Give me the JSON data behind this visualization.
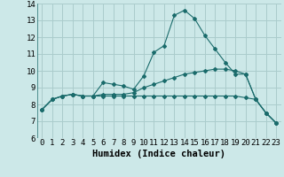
{
  "title": "",
  "xlabel": "Humidex (Indice chaleur)",
  "ylabel": "",
  "xlim": [
    -0.5,
    23.5
  ],
  "ylim": [
    6,
    14
  ],
  "yticks": [
    6,
    7,
    8,
    9,
    10,
    11,
    12,
    13,
    14
  ],
  "xticks": [
    0,
    1,
    2,
    3,
    4,
    5,
    6,
    7,
    8,
    9,
    10,
    11,
    12,
    13,
    14,
    15,
    16,
    17,
    18,
    19,
    20,
    21,
    22,
    23
  ],
  "background_color": "#cce8e8",
  "grid_color": "#aacccc",
  "line_color": "#1a6b6b",
  "line1_x": [
    0,
    1,
    2,
    3,
    4,
    5,
    6,
    7,
    8,
    9,
    10,
    11,
    12,
    13,
    14,
    15,
    16,
    17,
    18,
    19,
    20,
    21,
    22,
    23
  ],
  "line1_y": [
    7.7,
    8.3,
    8.5,
    8.6,
    8.5,
    8.5,
    9.3,
    9.2,
    9.1,
    8.9,
    9.7,
    11.1,
    11.5,
    13.3,
    13.6,
    13.1,
    12.1,
    11.3,
    10.5,
    9.8,
    9.8,
    8.3,
    7.5,
    6.9
  ],
  "line2_x": [
    0,
    1,
    2,
    3,
    4,
    5,
    6,
    7,
    8,
    9,
    10,
    11,
    12,
    13,
    14,
    15,
    16,
    17,
    18,
    19,
    20,
    21,
    22,
    23
  ],
  "line2_y": [
    7.7,
    8.3,
    8.5,
    8.6,
    8.5,
    8.5,
    8.5,
    8.5,
    8.5,
    8.5,
    8.5,
    8.5,
    8.5,
    8.5,
    8.5,
    8.5,
    8.5,
    8.5,
    8.5,
    8.5,
    8.4,
    8.3,
    7.5,
    6.9
  ],
  "line3_x": [
    0,
    1,
    2,
    3,
    4,
    5,
    6,
    7,
    8,
    9,
    10,
    11,
    12,
    13,
    14,
    15,
    16,
    17,
    18,
    19,
    20,
    21,
    22,
    23
  ],
  "line3_y": [
    7.7,
    8.3,
    8.5,
    8.6,
    8.5,
    8.5,
    8.6,
    8.6,
    8.6,
    8.7,
    9.0,
    9.2,
    9.4,
    9.6,
    9.8,
    9.9,
    10.0,
    10.1,
    10.1,
    10.0,
    9.8,
    8.3,
    7.5,
    6.9
  ],
  "tick_fontsize": 6.5,
  "xlabel_fontsize": 7.5
}
